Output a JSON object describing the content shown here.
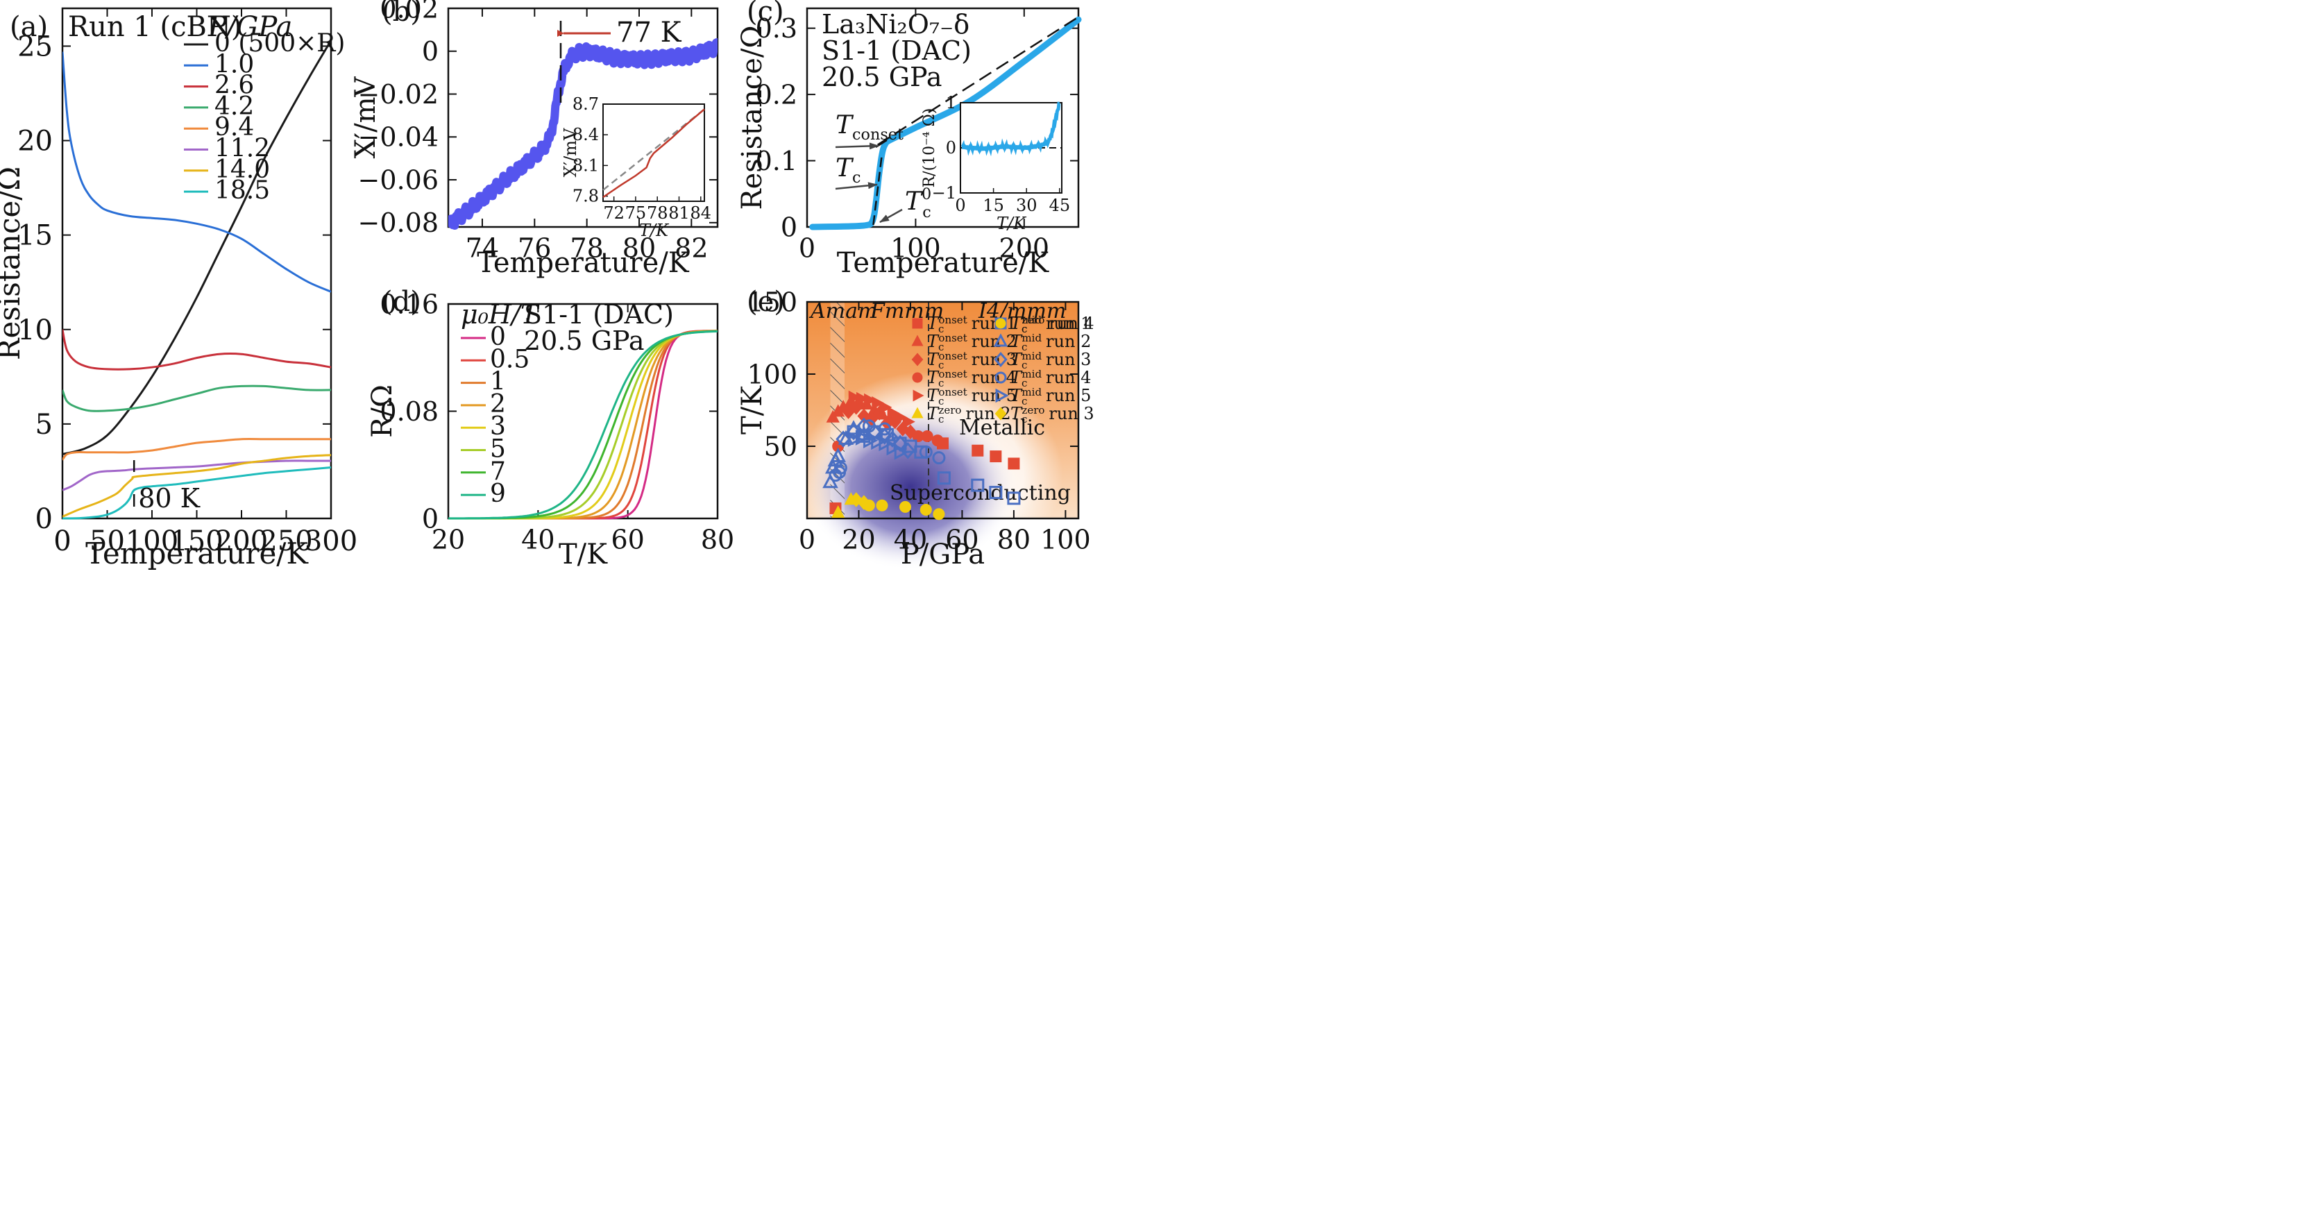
{
  "chart_data": [
    {
      "id": "a",
      "type": "line",
      "panel_label": "(a)",
      "xlabel": "Temperature/K",
      "ylabel": "Resistance/Ω",
      "xlim": [
        0,
        300
      ],
      "ylim": [
        0,
        27
      ],
      "xticks": [
        "0",
        "50",
        "100",
        "150",
        "200",
        "250",
        "300"
      ],
      "yticks": [
        "0",
        "5",
        "10",
        "15",
        "20",
        "25"
      ],
      "annotation_title": "Run 1 (cBN)",
      "legend_title": "P/GPa",
      "legend_position": "top-right",
      "marker_label": "80 K",
      "marker_x": 80,
      "series": [
        {
          "name": "0 (500×R)",
          "color": "#1a1a1a",
          "x": [
            0,
            25,
            50,
            75,
            100,
            125,
            150,
            175,
            200,
            225,
            250,
            275,
            300
          ],
          "y": [
            3.4,
            3.7,
            4.4,
            5.8,
            7.5,
            9.5,
            11.7,
            14.1,
            16.5,
            19.0,
            21.2,
            23.3,
            25.3
          ]
        },
        {
          "name": "1.0",
          "color": "#2a6fd6",
          "x": [
            0,
            5,
            10,
            20,
            30,
            40,
            50,
            75,
            100,
            125,
            150,
            175,
            200,
            225,
            250,
            275,
            300
          ],
          "y": [
            24.7,
            21.5,
            19.8,
            18.0,
            17.1,
            16.6,
            16.3,
            16.0,
            15.9,
            15.8,
            15.6,
            15.3,
            14.8,
            14.0,
            13.2,
            12.5,
            12.0
          ]
        },
        {
          "name": "2.6",
          "color": "#c8303a",
          "x": [
            0,
            5,
            15,
            30,
            50,
            75,
            100,
            125,
            150,
            175,
            200,
            225,
            250,
            275,
            300
          ],
          "y": [
            10.0,
            8.9,
            8.3,
            8.0,
            7.9,
            7.9,
            8.0,
            8.2,
            8.5,
            8.7,
            8.7,
            8.5,
            8.3,
            8.2,
            8.0
          ]
        },
        {
          "name": "4.2",
          "color": "#3aaa6e",
          "x": [
            0,
            5,
            15,
            30,
            50,
            75,
            100,
            125,
            150,
            175,
            200,
            225,
            250,
            275,
            300
          ],
          "y": [
            6.8,
            6.2,
            5.9,
            5.7,
            5.7,
            5.8,
            6.0,
            6.3,
            6.6,
            6.9,
            7.0,
            7.0,
            6.9,
            6.8,
            6.8
          ]
        },
        {
          "name": "9.4",
          "color": "#f08a3c",
          "x": [
            0,
            5,
            15,
            30,
            50,
            75,
            100,
            125,
            150,
            175,
            200,
            225,
            250,
            275,
            300
          ],
          "y": [
            3.1,
            3.4,
            3.5,
            3.5,
            3.5,
            3.5,
            3.6,
            3.8,
            4.0,
            4.1,
            4.2,
            4.2,
            4.2,
            4.2,
            4.2
          ]
        },
        {
          "name": "11.2",
          "color": "#a166c9",
          "x": [
            0,
            10,
            20,
            30,
            40,
            50,
            60,
            70,
            80,
            100,
            125,
            150,
            175,
            200,
            225,
            250,
            275,
            300
          ],
          "y": [
            1.5,
            1.7,
            2.0,
            2.3,
            2.45,
            2.5,
            2.52,
            2.55,
            2.6,
            2.65,
            2.7,
            2.75,
            2.85,
            2.95,
            3.0,
            3.05,
            3.05,
            3.05
          ]
        },
        {
          "name": "14.0",
          "color": "#e6b418",
          "x": [
            0,
            20,
            40,
            60,
            70,
            78,
            80,
            100,
            125,
            150,
            175,
            200,
            225,
            250,
            275,
            300
          ],
          "y": [
            0.1,
            0.5,
            0.85,
            1.3,
            1.75,
            2.1,
            2.2,
            2.3,
            2.4,
            2.5,
            2.65,
            2.9,
            3.05,
            3.2,
            3.3,
            3.35
          ]
        },
        {
          "name": "18.5",
          "color": "#1fbcbc",
          "x": [
            0,
            20,
            40,
            50,
            60,
            70,
            75,
            80,
            90,
            100,
            125,
            150,
            175,
            200,
            225,
            250,
            275,
            300
          ],
          "y": [
            0.0,
            0.02,
            0.1,
            0.2,
            0.4,
            0.75,
            1.05,
            1.5,
            1.65,
            1.7,
            1.8,
            1.95,
            2.1,
            2.25,
            2.4,
            2.5,
            2.6,
            2.7
          ]
        }
      ]
    },
    {
      "id": "b",
      "type": "scatter",
      "panel_label": "(b)",
      "xlabel": "Temperature/K",
      "ylabel": "X′/mV",
      "xlim": [
        72.7,
        83.0
      ],
      "ylim": [
        -0.082,
        0.02
      ],
      "xticks": [
        "74",
        "76",
        "78",
        "80",
        "82"
      ],
      "yticks": [
        "−0.08",
        "−0.06",
        "−0.04",
        "−0.02",
        "0",
        "0.02"
      ],
      "marker_label": "77 K",
      "marker_x": 77,
      "color": "#5555ee",
      "series": [
        {
          "x": [
            72.7,
            73.5,
            74.5,
            75.5,
            76.3,
            76.6,
            76.75,
            76.9,
            77.0,
            77.1,
            77.3,
            77.6,
            78.0,
            79.0,
            80.0,
            81.0,
            82.0,
            83.0
          ],
          "y": [
            -0.081,
            -0.074,
            -0.064,
            -0.054,
            -0.046,
            -0.04,
            -0.031,
            -0.02,
            -0.014,
            -0.01,
            -0.004,
            -0.001,
            0.0,
            -0.003,
            -0.004,
            -0.003,
            -0.002,
            0.002
          ]
        }
      ],
      "inset": {
        "xlabel": "T/K",
        "ylabel": "X′/mV",
        "xlim": [
          70.5,
          84.5
        ],
        "ylim": [
          7.75,
          8.7
        ],
        "xticks": [
          "72",
          "75",
          "78",
          "81",
          "84"
        ],
        "yticks": [
          "7.8",
          "8.1",
          "8.4",
          "8.7"
        ],
        "data": {
          "x": [
            70.5,
            73,
            75,
            76.5,
            77.0,
            77.5,
            80,
            82,
            84.5
          ],
          "y": [
            7.79,
            7.91,
            8.0,
            8.08,
            8.17,
            8.22,
            8.37,
            8.5,
            8.65
          ]
        },
        "guide": {
          "x": [
            70.5,
            84.5
          ],
          "y": [
            7.86,
            8.65
          ]
        }
      }
    },
    {
      "id": "c",
      "type": "line",
      "panel_label": "(c)",
      "xlabel": "Temperature/K",
      "ylabel": "Resistance/Ω",
      "xlim": [
        0,
        250
      ],
      "ylim": [
        0,
        0.33
      ],
      "xticks": [
        "0",
        "100",
        "200"
      ],
      "yticks": [
        "0",
        "0.1",
        "0.2",
        "0.3"
      ],
      "annotation_lines": [
        "La₃Ni₂O₇₋δ",
        "S1-1 (DAC)",
        "20.5 GPa"
      ],
      "label_tconset": "T",
      "label_tconset_sub": "conset",
      "label_tc": "T",
      "label_tc_sub": "c",
      "label_tc0": "T",
      "label_tc0_sub": "c",
      "label_tc0_sup": "0",
      "color": "#2aa7e8",
      "series": [
        {
          "name": "data",
          "x": [
            5,
            40,
            56,
            60,
            62,
            64,
            66,
            68,
            70,
            72,
            74,
            80,
            100,
            150,
            200,
            250
          ],
          "y": [
            0.0,
            0.001,
            0.003,
            0.008,
            0.02,
            0.045,
            0.075,
            0.1,
            0.117,
            0.125,
            0.129,
            0.134,
            0.15,
            0.19,
            0.25,
            0.313
          ]
        }
      ],
      "fit": {
        "x": [
          65,
          250
        ],
        "y": [
          0.124,
          0.317
        ]
      },
      "inset": {
        "xlabel": "T/K",
        "ylabel": "R/(10⁻⁴ Ω)",
        "xlim": [
          0,
          46
        ],
        "ylim": [
          -1,
          1
        ],
        "xticks": [
          "0",
          "15",
          "30",
          "45"
        ],
        "yticks": [
          "−1",
          "0",
          "1"
        ],
        "data": {
          "x": [
            1,
            10,
            20,
            30,
            36,
            38,
            40,
            41,
            42,
            43,
            44,
            45
          ],
          "y": [
            0.02,
            -0.02,
            0.03,
            0.0,
            0.05,
            0.08,
            0.15,
            0.25,
            0.4,
            0.6,
            0.8,
            1.0
          ]
        }
      }
    },
    {
      "id": "d",
      "type": "line",
      "panel_label": "(d)",
      "xlabel": "T/K",
      "ylabel": "R/Ω",
      "xlim": [
        20,
        80
      ],
      "ylim": [
        0,
        0.16
      ],
      "xticks": [
        "20",
        "40",
        "60",
        "80"
      ],
      "yticks": [
        "0",
        "0.08",
        "0.16"
      ],
      "annotation_lines": [
        "S1-1 (DAC)",
        "20.5 GPa"
      ],
      "legend_title": "μ₀H/T",
      "legend_position": "top-left",
      "plateau": 0.14,
      "series": [
        {
          "name": "0",
          "color": "#d42a84",
          "midpoint": 66.0,
          "width": 1.5
        },
        {
          "name": "0.5",
          "color": "#e0453e",
          "midpoint": 64.6,
          "width": 1.8
        },
        {
          "name": "1",
          "color": "#e07a2c",
          "midpoint": 63.3,
          "width": 2.2
        },
        {
          "name": "2",
          "color": "#e39a24",
          "midpoint": 61.8,
          "width": 2.6
        },
        {
          "name": "3",
          "color": "#e2cc1a",
          "midpoint": 60.2,
          "width": 3.0
        },
        {
          "name": "5",
          "color": "#a7cd2a",
          "midpoint": 58.6,
          "width": 3.4
        },
        {
          "name": "7",
          "color": "#3fb52e",
          "midpoint": 56.9,
          "width": 3.8
        },
        {
          "name": "9",
          "color": "#1fb587",
          "midpoint": 55.3,
          "width": 4.2
        }
      ]
    },
    {
      "id": "e",
      "type": "scatter",
      "panel_label": "(e)",
      "xlabel": "P/GPa",
      "ylabel": "T/K",
      "xlim": [
        0,
        105
      ],
      "ylim": [
        0,
        150
      ],
      "xticks": [
        "0",
        "20",
        "40",
        "60",
        "80",
        "100"
      ],
      "yticks": [
        "50",
        "100",
        "150"
      ],
      "phase_labels": [
        "Amam",
        "Fmmm",
        "I4/mmm"
      ],
      "region_labels": [
        "Metallic",
        "Superconducting"
      ],
      "hatch_range": [
        9,
        14.5
      ],
      "boundary_x": 47,
      "series": [
        {
          "name": "T_c^onset run 1",
          "label": "run 1",
          "sym": "T",
          "sup": "onset",
          "marker": "square",
          "filled": true,
          "color": "#e34a33",
          "x": [
            11,
            52.5,
            66,
            73,
            80
          ],
          "y": [
            7,
            52,
            47,
            43,
            38
          ]
        },
        {
          "name": "T_c^onset run 2",
          "label": "run 2",
          "sym": "T",
          "sup": "onset",
          "marker": "triangle-up",
          "filled": true,
          "color": "#e34a33",
          "x": [
            10,
            12,
            14,
            17,
            20,
            23,
            26,
            29,
            32
          ],
          "y": [
            70,
            74,
            77,
            81,
            81,
            79,
            75,
            72,
            69
          ]
        },
        {
          "name": "T_c^onset run 3",
          "label": "run 3",
          "sym": "T",
          "sup": "onset",
          "marker": "diamond",
          "filled": true,
          "color": "#e34a33",
          "x": [
            16,
            19,
            22,
            25,
            28,
            31,
            34,
            37,
            40
          ],
          "y": [
            74,
            77,
            71,
            69,
            73,
            66,
            67,
            62,
            60
          ]
        },
        {
          "name": "T_c^onset run 4",
          "label": "run 4",
          "sym": "T",
          "sup": "onset",
          "marker": "circle",
          "filled": true,
          "color": "#e34a33",
          "x": [
            12,
            43,
            46.5,
            50.5
          ],
          "y": [
            50,
            57,
            57,
            54
          ]
        },
        {
          "name": "T_c^onset run 5",
          "label": "run 5",
          "sym": "T",
          "sup": "onset",
          "marker": "triangle-right",
          "filled": true,
          "color": "#e34a33",
          "x": [
            18,
            21,
            24,
            27,
            30,
            33,
            36,
            39
          ],
          "y": [
            84,
            83,
            82,
            80,
            77,
            73,
            70,
            67
          ]
        },
        {
          "name": "T_c^zero run 2",
          "label": "run 2",
          "sym": "T",
          "sup": "zero",
          "marker": "triangle-up",
          "filled": true,
          "color": "#f2cc0c",
          "x": [
            12,
            17
          ],
          "y": [
            4,
            13
          ]
        },
        {
          "name": "T_c^mid run 1",
          "label": "run 1",
          "sym": "T",
          "sup": "mid",
          "marker": "square",
          "filled": false,
          "color": "#4a6fc2",
          "x": [
            18,
            22,
            26,
            31,
            36,
            40,
            44,
            53,
            66,
            73,
            80
          ],
          "y": [
            60,
            57,
            60,
            58,
            52,
            50,
            46,
            28,
            23,
            18,
            14
          ]
        },
        {
          "name": "T_c^mid run 2",
          "label": "run 2",
          "sym": "T",
          "sup": "mid",
          "marker": "triangle-up",
          "filled": false,
          "color": "#4a6fc2",
          "x": [
            9,
            10,
            11,
            12,
            15,
            18,
            22
          ],
          "y": [
            25,
            35,
            40,
            43,
            55,
            62,
            58
          ]
        },
        {
          "name": "T_c^mid run 3",
          "label": "run 3",
          "sym": "T",
          "sup": "mid",
          "marker": "diamond",
          "filled": false,
          "color": "#4a6fc2",
          "x": [
            14,
            18,
            22,
            26,
            30,
            33,
            36,
            39
          ],
          "y": [
            55,
            60,
            64,
            60,
            57,
            55,
            52,
            47
          ]
        },
        {
          "name": "T_c^mid run 4",
          "label": "run 4",
          "sym": "T",
          "sup": "mid",
          "marker": "circle",
          "filled": false,
          "color": "#4a6fc2",
          "x": [
            11,
            12.5,
            13,
            24,
            30,
            46,
            51
          ],
          "y": [
            30,
            32,
            35,
            64,
            62,
            46,
            42
          ]
        },
        {
          "name": "T_c^mid run 5",
          "label": "run 5",
          "sym": "T",
          "sup": "mid",
          "marker": "triangle-right",
          "filled": false,
          "color": "#4a6fc2",
          "x": [
            18,
            21,
            24,
            27,
            30,
            33,
            36
          ],
          "y": [
            55,
            56,
            54,
            53,
            52,
            49,
            46
          ]
        },
        {
          "name": "T_c^zero run 3",
          "label": "run 3",
          "sym": "T",
          "sup": "zero",
          "marker": "diamond",
          "filled": true,
          "color": "#f2cc0c",
          "x": [
            19,
            22
          ],
          "y": [
            13,
            11
          ]
        },
        {
          "name": "T_c^zero run 4",
          "label": "run 4",
          "sym": "T",
          "sup": "zero",
          "marker": "circle",
          "filled": true,
          "color": "#f2cc0c",
          "x": [
            24,
            29,
            38,
            46,
            51
          ],
          "y": [
            9,
            9,
            8,
            6,
            3
          ]
        }
      ]
    }
  ]
}
